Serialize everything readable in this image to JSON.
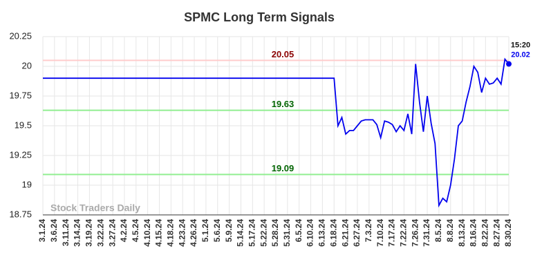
{
  "chart_data": {
    "type": "line",
    "title": "SPMC Long Term Signals",
    "categories": [
      "3.1.24",
      null,
      null,
      "3.6.24",
      null,
      null,
      "3.11.24",
      null,
      null,
      "3.14.24",
      null,
      null,
      "3.19.24",
      null,
      null,
      "3.22.24",
      null,
      null,
      "3.27.24",
      null,
      null,
      "4.2.24",
      null,
      null,
      "4.5.24",
      null,
      null,
      "4.10.24",
      null,
      null,
      "4.15.24",
      null,
      null,
      "4.18.24",
      null,
      null,
      "4.23.24",
      null,
      null,
      "4.26.24",
      null,
      null,
      "5.1.24",
      null,
      null,
      "5.6.24",
      null,
      null,
      "5.9.24",
      null,
      null,
      "5.14.24",
      null,
      null,
      "5.17.24",
      null,
      null,
      "5.22.24",
      null,
      null,
      "5.28.24",
      null,
      null,
      "5.31.24",
      null,
      null,
      "6.5.24",
      null,
      null,
      "6.10.24",
      null,
      null,
      "6.13.24",
      null,
      null,
      "6.18.24",
      null,
      null,
      "6.21.24",
      null,
      null,
      "6.27.24",
      null,
      null,
      "7.3.24",
      null,
      null,
      "7.10.24",
      null,
      null,
      "7.17.24",
      null,
      null,
      "7.22.24",
      null,
      null,
      "7.26.24",
      null,
      null,
      "7.31.24",
      null,
      null,
      "8.5.24",
      null,
      null,
      "8.8.24",
      null,
      null,
      "8.13.24",
      null,
      null,
      "8.16.24",
      null,
      null,
      "8.22.24",
      null,
      null,
      "8.27.24",
      null,
      null,
      "8.30.24"
    ],
    "values": [
      19.9,
      19.9,
      19.9,
      19.9,
      19.9,
      19.9,
      19.9,
      19.9,
      19.9,
      19.9,
      19.9,
      19.9,
      19.9,
      19.9,
      19.9,
      19.9,
      19.9,
      19.9,
      19.9,
      19.9,
      19.9,
      19.9,
      19.9,
      19.9,
      19.9,
      19.9,
      19.9,
      19.9,
      19.9,
      19.9,
      19.9,
      19.9,
      19.9,
      19.9,
      19.9,
      19.9,
      19.9,
      19.9,
      19.9,
      19.9,
      19.9,
      19.9,
      19.9,
      19.9,
      19.9,
      19.9,
      19.9,
      19.9,
      19.9,
      19.9,
      19.9,
      19.9,
      19.9,
      19.9,
      19.9,
      19.9,
      19.9,
      19.9,
      19.9,
      19.9,
      19.9,
      19.9,
      19.9,
      19.9,
      19.9,
      19.9,
      19.9,
      19.9,
      19.9,
      19.9,
      19.9,
      19.9,
      19.9,
      19.9,
      19.9,
      19.9,
      19.5,
      19.57,
      19.43,
      19.46,
      19.46,
      19.5,
      19.54,
      19.55,
      19.55,
      19.55,
      19.51,
      19.4,
      19.54,
      19.53,
      19.51,
      19.45,
      19.5,
      19.46,
      19.6,
      19.43,
      20.02,
      19.7,
      19.45,
      19.75,
      19.52,
      19.35,
      18.83,
      18.89,
      18.86,
      19.0,
      19.22,
      19.5,
      19.54,
      19.7,
      19.83,
      20.0,
      19.95,
      19.78,
      19.9,
      19.85,
      19.86,
      19.9,
      19.85,
      20.06,
      20.02
    ],
    "color": "#0000ee",
    "ylim": [
      18.75,
      20.25
    ],
    "yticks": [
      18.75,
      19,
      19.25,
      19.5,
      19.75,
      20,
      20.25
    ],
    "grid": true,
    "hlines": [
      {
        "value": 20.05,
        "color": "#ffcccc",
        "label_color": "#8b0000"
      },
      {
        "value": 19.63,
        "color": "#90ee90",
        "label_color": "#006400"
      },
      {
        "value": 19.09,
        "color": "#90ee90",
        "label_color": "#006400"
      }
    ],
    "last_time": "15:20",
    "watermark": "Stock Traders Daily"
  }
}
